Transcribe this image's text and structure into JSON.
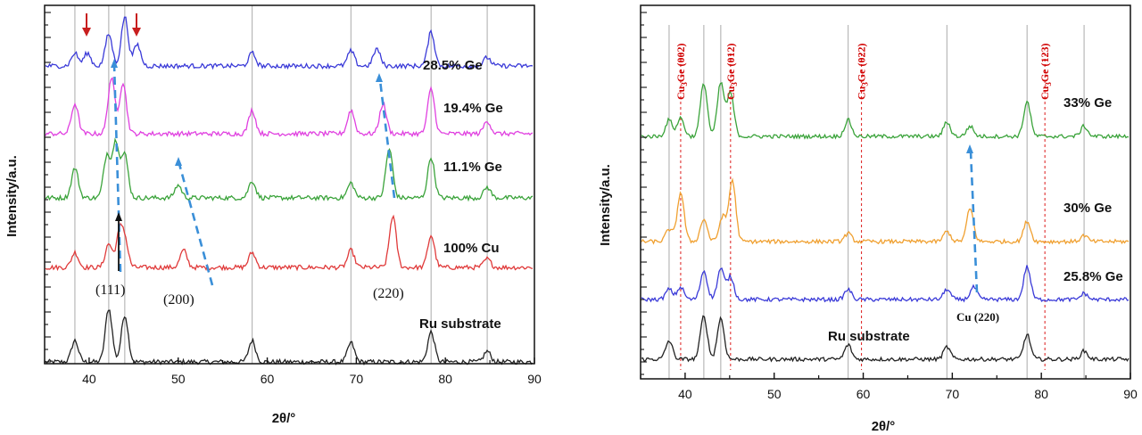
{
  "chart_data": [
    {
      "type": "line",
      "panel": "left",
      "xlabel": "2θ/°",
      "ylabel": "Intensity/a.u.",
      "xlim": [
        35,
        90
      ],
      "x_ticks": [
        "40",
        "50",
        "60",
        "70",
        "80",
        "90"
      ],
      "reference_lines_2theta": [
        38.4,
        42.2,
        44.0,
        58.3,
        69.4,
        78.4,
        84.7
      ],
      "series": [
        {
          "name": "Ru substrate",
          "color": "#222222",
          "peaks": [
            [
              38.4,
              1.0
            ],
            [
              42.2,
              2.5
            ],
            [
              44.0,
              2.2
            ],
            [
              58.3,
              1.0
            ],
            [
              69.4,
              0.9
            ],
            [
              78.4,
              1.4
            ],
            [
              84.7,
              0.5
            ]
          ]
        },
        {
          "name": "100% Cu",
          "color": "#e03a3a",
          "peaks": [
            [
              38.4,
              0.7
            ],
            [
              42.2,
              1.1
            ],
            [
              43.4,
              1.5
            ],
            [
              44.0,
              1.2
            ],
            [
              50.6,
              0.8
            ],
            [
              58.3,
              0.7
            ],
            [
              69.4,
              0.8
            ],
            [
              74.1,
              2.4
            ],
            [
              78.4,
              1.5
            ],
            [
              84.7,
              0.4
            ]
          ]
        },
        {
          "name": "11.1% Ge",
          "color": "#3aa33a",
          "peaks": [
            [
              38.4,
              1.4
            ],
            [
              42.0,
              2.0
            ],
            [
              43.0,
              2.6
            ],
            [
              44.0,
              2.0
            ],
            [
              50.0,
              0.6
            ],
            [
              58.3,
              0.8
            ],
            [
              69.4,
              0.7
            ],
            [
              73.7,
              2.3
            ],
            [
              78.4,
              1.9
            ],
            [
              84.7,
              0.5
            ]
          ]
        },
        {
          "name": "19.4% Ge",
          "color": "#e040e0",
          "peaks": [
            [
              38.4,
              1.4
            ],
            [
              42.5,
              2.6
            ],
            [
              43.8,
              2.4
            ],
            [
              58.3,
              1.1
            ],
            [
              69.4,
              1.1
            ],
            [
              73.0,
              1.4
            ],
            [
              78.4,
              2.1
            ],
            [
              84.7,
              0.6
            ]
          ]
        },
        {
          "name": "28.5% Ge",
          "color": "#3a3ad8",
          "peaks": [
            [
              38.4,
              0.6
            ],
            [
              39.8,
              0.6
            ],
            [
              42.2,
              1.5
            ],
            [
              44.0,
              2.3
            ],
            [
              45.4,
              1.0
            ],
            [
              58.3,
              0.6
            ],
            [
              69.4,
              0.7
            ],
            [
              72.3,
              0.8
            ],
            [
              78.4,
              1.6
            ],
            [
              84.7,
              0.4
            ]
          ]
        }
      ],
      "annotations": [
        "(111)",
        "(200)",
        "(220)"
      ]
    },
    {
      "type": "line",
      "panel": "right",
      "xlabel": "2θ/°",
      "ylabel": "Intensity/a.u.",
      "xlim": [
        35,
        90
      ],
      "x_ticks": [
        "40",
        "50",
        "60",
        "70",
        "80",
        "90"
      ],
      "reference_lines_2theta": [
        38.2,
        42.1,
        44.0,
        58.3,
        69.4,
        78.4,
        84.8
      ],
      "phase_lines_2theta": [
        39.5,
        45.1,
        59.8,
        80.4
      ],
      "phase_labels": [
        {
          "base": "Cu",
          "sub": "3",
          "rest": "Ge (002)"
        },
        {
          "base": "Cu",
          "sub": "3",
          "rest": "Ge (012)"
        },
        {
          "base": "Cu",
          "sub": "3",
          "rest": "Ge (022)"
        },
        {
          "base": "Cu",
          "sub": "3",
          "rest": "Ge (123)"
        }
      ],
      "series": [
        {
          "name": "Ru substrate",
          "color": "#222222",
          "peaks": [
            [
              38.2,
              0.9
            ],
            [
              42.1,
              2.1
            ],
            [
              44.0,
              2.0
            ],
            [
              58.3,
              0.7
            ],
            [
              69.4,
              0.6
            ],
            [
              78.4,
              1.2
            ],
            [
              84.8,
              0.4
            ]
          ]
        },
        {
          "name": "25.8% Ge",
          "color": "#3a3ad8",
          "peaks": [
            [
              38.2,
              0.5
            ],
            [
              39.5,
              0.6
            ],
            [
              42.1,
              1.4
            ],
            [
              44.0,
              1.5
            ],
            [
              45.1,
              1.1
            ],
            [
              58.3,
              0.5
            ],
            [
              69.4,
              0.5
            ],
            [
              72.4,
              0.6
            ],
            [
              78.4,
              1.6
            ],
            [
              84.8,
              0.3
            ]
          ]
        },
        {
          "name": "30% Ge",
          "color": "#f0a030",
          "peaks": [
            [
              38.2,
              0.6
            ],
            [
              39.5,
              2.4
            ],
            [
              42.1,
              1.1
            ],
            [
              44.2,
              1.2
            ],
            [
              45.3,
              3.0
            ],
            [
              58.3,
              0.4
            ],
            [
              69.4,
              0.5
            ],
            [
              72.0,
              1.6
            ],
            [
              78.4,
              1.0
            ],
            [
              84.8,
              0.3
            ]
          ]
        },
        {
          "name": "33% Ge",
          "color": "#3aa33a",
          "peaks": [
            [
              38.2,
              0.8
            ],
            [
              39.5,
              0.9
            ],
            [
              42.1,
              2.6
            ],
            [
              44.0,
              2.6
            ],
            [
              45.1,
              2.1
            ],
            [
              58.3,
              0.8
            ],
            [
              69.4,
              0.7
            ],
            [
              72.0,
              0.5
            ],
            [
              78.4,
              1.7
            ],
            [
              84.8,
              0.5
            ]
          ]
        }
      ],
      "annotations": [
        "Cu (220)"
      ]
    }
  ]
}
